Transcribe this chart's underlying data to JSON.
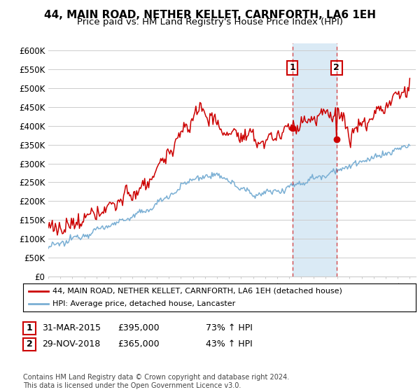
{
  "title": "44, MAIN ROAD, NETHER KELLET, CARNFORTH, LA6 1EH",
  "subtitle": "Price paid vs. HM Land Registry's House Price Index (HPI)",
  "ylim": [
    0,
    620000
  ],
  "yticks": [
    0,
    50000,
    100000,
    150000,
    200000,
    250000,
    300000,
    350000,
    400000,
    450000,
    500000,
    550000,
    600000
  ],
  "ytick_labels": [
    "£0",
    "£50K",
    "£100K",
    "£150K",
    "£200K",
    "£250K",
    "£300K",
    "£350K",
    "£400K",
    "£450K",
    "£500K",
    "£550K",
    "£600K"
  ],
  "xmin": 1995,
  "xmax": 2025.5,
  "sale1_date": 2015.25,
  "sale1_price": 395000,
  "sale2_date": 2018.92,
  "sale2_price": 365000,
  "legend_line1": "44, MAIN ROAD, NETHER KELLET, CARNFORTH, LA6 1EH (detached house)",
  "legend_line2": "HPI: Average price, detached house, Lancaster",
  "ann1_date": "31-MAR-2015",
  "ann1_price": "£395,000",
  "ann1_hpi": "73% ↑ HPI",
  "ann2_date": "29-NOV-2018",
  "ann2_price": "£365,000",
  "ann2_hpi": "43% ↑ HPI",
  "footer": "Contains HM Land Registry data © Crown copyright and database right 2024.\nThis data is licensed under the Open Government Licence v3.0.",
  "red_color": "#cc0000",
  "blue_color": "#7aafd4",
  "shade_color": "#daeaf5",
  "grid_color": "#cccccc",
  "bg_color": "#ffffff",
  "title_fontsize": 11,
  "subtitle_fontsize": 9.5,
  "tick_fontsize": 8.5,
  "annot_fontsize": 9
}
